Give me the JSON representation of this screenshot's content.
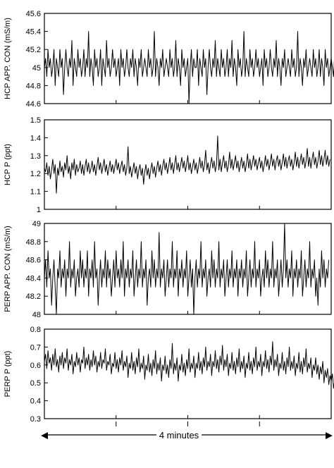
{
  "chart_data": [
    {
      "type": "line",
      "ylabel": "HCP APP. CON (mS/m)",
      "ylim": [
        44.6,
        45.6
      ],
      "yticks": [
        "44.6",
        "44.8",
        "45",
        "45.2",
        "45.4",
        "45.6"
      ],
      "xlim": [
        0,
        240
      ],
      "series": [
        {
          "values": [
            45.0,
            45.1,
            44.9,
            45.2,
            45.0,
            45.1,
            44.9,
            45.0,
            45.2,
            44.8,
            45.1,
            45.0,
            44.9,
            45.2,
            45.0,
            45.1,
            44.7,
            45.0,
            45.2,
            45.0,
            44.9,
            45.1,
            45.0,
            45.3,
            44.8,
            45.1,
            45.0,
            44.9,
            45.2,
            45.0,
            45.1,
            44.9,
            45.0,
            45.2,
            44.9,
            45.1,
            45.0,
            45.4,
            44.9,
            45.1,
            45.0,
            44.8,
            45.2,
            45.0,
            45.1,
            44.9,
            45.0,
            45.2,
            44.8,
            45.1,
            45.0,
            44.9,
            45.3,
            45.0,
            45.1,
            44.9,
            45.0,
            45.2,
            45.0,
            45.1,
            44.9,
            45.0,
            45.1,
            44.8,
            45.2,
            45.0,
            45.1,
            44.9,
            45.0,
            45.2,
            45.0,
            44.9,
            45.1,
            45.0,
            45.2,
            44.9,
            45.1,
            45.0,
            44.8,
            45.1,
            45.0,
            45.2,
            44.9,
            45.0,
            45.1,
            45.0,
            44.9,
            45.2,
            45.0,
            45.1,
            44.9,
            45.0,
            45.4,
            44.9,
            45.1,
            45.0,
            44.8,
            45.1,
            45.0,
            45.2,
            44.9,
            45.0,
            45.1,
            45.0,
            44.9,
            45.2,
            45.0,
            45.1,
            44.9,
            45.0,
            45.3,
            44.9,
            45.1,
            45.0,
            44.8,
            45.2,
            45.0,
            45.1,
            44.9,
            45.0,
            45.1,
            44.6,
            45.0,
            45.2,
            44.9,
            45.1,
            45.0,
            45.0,
            45.2,
            44.8,
            45.1,
            45.0,
            44.9,
            45.2,
            45.0,
            45.1,
            44.7,
            45.0,
            45.2,
            45.0,
            44.9,
            45.1,
            45.0,
            45.3,
            44.9,
            45.1,
            45.0,
            44.9,
            45.2,
            45.0,
            45.1,
            44.9,
            45.0,
            45.2,
            44.9,
            45.1,
            45.0,
            45.3,
            44.9,
            45.1,
            45.0,
            44.8,
            45.2,
            45.0,
            45.1,
            44.9,
            45.0,
            45.4,
            44.9,
            45.1,
            45.0,
            44.9,
            45.2,
            45.0,
            45.1,
            44.9,
            45.0,
            45.2,
            45.0,
            45.1,
            44.9,
            45.0,
            45.1,
            44.8,
            45.2,
            45.0,
            45.1,
            44.9,
            45.0,
            45.2,
            45.0,
            44.9,
            45.1,
            45.0,
            45.3,
            44.9,
            45.1,
            45.0,
            44.8,
            45.1,
            45.0,
            45.2,
            44.9,
            45.0,
            45.1,
            45.0,
            44.9,
            45.2,
            45.0,
            45.1,
            44.9,
            45.0,
            45.4,
            44.9,
            45.1,
            45.0,
            44.8,
            45.1,
            45.0,
            45.2,
            44.9,
            45.0,
            45.1,
            45.0,
            44.9,
            45.2,
            45.0,
            45.1,
            44.9,
            45.0,
            45.2,
            44.9,
            45.1,
            45.0,
            44.8,
            45.2,
            45.0,
            45.1,
            44.9,
            45.0,
            45.1,
            45.0,
            44.9,
            45.2,
            45.0,
            45.1,
            44.9,
            45.0
          ]
        }
      ]
    },
    {
      "type": "line",
      "ylabel": "HCP  P (ppt)",
      "ylim": [
        1,
        1.5
      ],
      "yticks": [
        "1",
        "1.1",
        "1.2",
        "1.3",
        "1.4",
        "1.5"
      ],
      "xlim": [
        0,
        240
      ],
      "series": [
        {
          "values": [
            1.23,
            1.21,
            1.26,
            1.19,
            1.24,
            1.17,
            1.22,
            1.28,
            1.2,
            1.25,
            1.09,
            1.23,
            1.19,
            1.27,
            1.21,
            1.24,
            1.18,
            1.26,
            1.22,
            1.3,
            1.2,
            1.24,
            1.17,
            1.26,
            1.22,
            1.28,
            1.19,
            1.25,
            1.21,
            1.23,
            1.27,
            1.2,
            1.25,
            1.19,
            1.24,
            1.28,
            1.21,
            1.26,
            1.2,
            1.23,
            1.27,
            1.21,
            1.25,
            1.19,
            1.24,
            1.29,
            1.22,
            1.26,
            1.2,
            1.24,
            1.28,
            1.21,
            1.25,
            1.19,
            1.23,
            1.27,
            1.21,
            1.25,
            1.2,
            1.24,
            1.28,
            1.22,
            1.26,
            1.2,
            1.24,
            1.27,
            1.21,
            1.25,
            1.19,
            1.23,
            1.35,
            1.2,
            1.24,
            1.18,
            1.22,
            1.26,
            1.2,
            1.24,
            1.17,
            1.22,
            1.25,
            1.19,
            1.23,
            1.14,
            1.21,
            1.25,
            1.19,
            1.23,
            1.17,
            1.22,
            1.26,
            1.2,
            1.24,
            1.18,
            1.23,
            1.27,
            1.21,
            1.25,
            1.19,
            1.24,
            1.28,
            1.22,
            1.26,
            1.2,
            1.24,
            1.29,
            1.22,
            1.26,
            1.2,
            1.25,
            1.3,
            1.22,
            1.26,
            1.21,
            1.25,
            1.29,
            1.23,
            1.27,
            1.21,
            1.25,
            1.3,
            1.22,
            1.26,
            1.2,
            1.24,
            1.28,
            1.22,
            1.26,
            1.2,
            1.24,
            1.29,
            1.23,
            1.27,
            1.21,
            1.25,
            1.33,
            1.22,
            1.26,
            1.2,
            1.25,
            1.29,
            1.23,
            1.27,
            1.21,
            1.25,
            1.41,
            1.22,
            1.28,
            1.21,
            1.26,
            1.3,
            1.23,
            1.27,
            1.21,
            1.25,
            1.32,
            1.23,
            1.28,
            1.22,
            1.26,
            1.3,
            1.23,
            1.27,
            1.21,
            1.25,
            1.29,
            1.23,
            1.27,
            1.21,
            1.25,
            1.31,
            1.23,
            1.28,
            1.22,
            1.26,
            1.3,
            1.24,
            1.28,
            1.22,
            1.26,
            1.29,
            1.23,
            1.27,
            1.21,
            1.25,
            1.3,
            1.24,
            1.28,
            1.22,
            1.26,
            1.31,
            1.24,
            1.28,
            1.22,
            1.27,
            1.3,
            1.24,
            1.28,
            1.22,
            1.26,
            1.31,
            1.24,
            1.29,
            1.23,
            1.27,
            1.3,
            1.24,
            1.28,
            1.22,
            1.26,
            1.32,
            1.24,
            1.29,
            1.23,
            1.27,
            1.31,
            1.25,
            1.29,
            1.23,
            1.27,
            1.34,
            1.24,
            1.29,
            1.23,
            1.28,
            1.32,
            1.25,
            1.29,
            1.23,
            1.27,
            1.33,
            1.25,
            1.3,
            1.24,
            1.28,
            1.33,
            1.25,
            1.3,
            1.24,
            1.28
          ]
        }
      ]
    },
    {
      "type": "line",
      "ylabel": "PERP  APP. CON (mS/m)",
      "ylim": [
        48,
        49
      ],
      "yticks": [
        "48",
        "48.2",
        "48.4",
        "48.6",
        "48.8",
        "49"
      ],
      "xlim": [
        0,
        240
      ],
      "series": [
        {
          "values": [
            48.4,
            48.6,
            48.3,
            48.7,
            48.4,
            48.5,
            48.1,
            48.4,
            48.6,
            48.3,
            48.0,
            48.5,
            48.4,
            48.7,
            48.3,
            48.5,
            48.4,
            48.6,
            48.2,
            48.5,
            48.4,
            48.8,
            48.3,
            48.5,
            48.4,
            48.6,
            48.2,
            48.4,
            48.5,
            48.3,
            48.7,
            48.4,
            48.6,
            48.3,
            48.5,
            48.4,
            48.7,
            48.2,
            48.5,
            48.4,
            48.6,
            48.3,
            48.8,
            48.4,
            48.5,
            48.1,
            48.4,
            48.6,
            48.3,
            48.5,
            48.4,
            48.7,
            48.3,
            48.6,
            48.4,
            48.5,
            48.2,
            48.4,
            48.6,
            48.3,
            48.7,
            48.4,
            48.5,
            48.3,
            48.6,
            48.4,
            48.8,
            48.2,
            48.5,
            48.4,
            48.6,
            48.3,
            48.5,
            48.4,
            48.7,
            48.2,
            48.4,
            48.6,
            48.3,
            48.5,
            48.4,
            48.8,
            48.3,
            48.5,
            48.4,
            48.6,
            48.1,
            48.4,
            48.5,
            48.3,
            48.7,
            48.4,
            48.6,
            48.3,
            48.5,
            48.4,
            48.9,
            48.3,
            48.5,
            48.4,
            48.6,
            48.2,
            48.4,
            48.6,
            48.3,
            48.5,
            48.4,
            48.8,
            48.3,
            48.5,
            48.4,
            48.7,
            48.2,
            48.5,
            48.4,
            48.6,
            48.3,
            48.5,
            48.4,
            48.7,
            48.2,
            48.4,
            48.6,
            48.3,
            48.5,
            48.0,
            48.4,
            48.6,
            48.3,
            48.5,
            48.4,
            48.8,
            48.3,
            48.5,
            48.4,
            48.6,
            48.2,
            48.4,
            48.5,
            48.3,
            48.7,
            48.4,
            48.6,
            48.3,
            48.5,
            48.4,
            48.8,
            48.3,
            48.5,
            48.4,
            48.6,
            48.2,
            48.4,
            48.6,
            48.3,
            48.5,
            48.4,
            48.7,
            48.3,
            48.5,
            48.4,
            48.6,
            48.2,
            48.5,
            48.4,
            48.6,
            48.3,
            48.5,
            48.4,
            48.7,
            48.2,
            48.4,
            48.6,
            48.3,
            48.5,
            48.4,
            48.8,
            48.3,
            48.5,
            48.4,
            48.6,
            48.2,
            48.4,
            48.5,
            48.3,
            48.7,
            48.4,
            48.6,
            48.3,
            48.5,
            48.4,
            48.8,
            48.3,
            48.5,
            48.4,
            48.6,
            48.2,
            48.4,
            48.6,
            48.3,
            48.5,
            49.0,
            48.4,
            48.6,
            48.3,
            48.5,
            48.4,
            48.7,
            48.2,
            48.5,
            48.4,
            48.6,
            48.3,
            48.5,
            48.4,
            48.7,
            48.2,
            48.4,
            48.6,
            48.3,
            48.5,
            48.4,
            48.8,
            48.3,
            48.5,
            48.4,
            48.6,
            48.2,
            48.4,
            48.1,
            48.5,
            48.3,
            48.7,
            48.4,
            48.6,
            48.3,
            48.5,
            48.4,
            48.6
          ]
        }
      ]
    },
    {
      "type": "line",
      "ylabel": "PERP  P (ppt)",
      "ylim": [
        0.3,
        0.8
      ],
      "yticks": [
        "0.3",
        "0.4",
        "0.5",
        "0.6",
        "0.7",
        "0.8"
      ],
      "xlim": [
        0,
        240
      ],
      "series": [
        {
          "values": [
            0.62,
            0.66,
            0.58,
            0.68,
            0.61,
            0.64,
            0.57,
            0.66,
            0.6,
            0.69,
            0.59,
            0.63,
            0.56,
            0.65,
            0.6,
            0.67,
            0.58,
            0.64,
            0.61,
            0.69,
            0.57,
            0.63,
            0.6,
            0.66,
            0.55,
            0.62,
            0.59,
            0.67,
            0.6,
            0.64,
            0.56,
            0.63,
            0.61,
            0.7,
            0.58,
            0.64,
            0.6,
            0.66,
            0.57,
            0.63,
            0.59,
            0.68,
            0.6,
            0.65,
            0.56,
            0.62,
            0.59,
            0.67,
            0.58,
            0.63,
            0.61,
            0.69,
            0.57,
            0.62,
            0.6,
            0.66,
            0.55,
            0.61,
            0.59,
            0.67,
            0.58,
            0.63,
            0.56,
            0.64,
            0.6,
            0.68,
            0.57,
            0.62,
            0.59,
            0.65,
            0.53,
            0.61,
            0.58,
            0.67,
            0.57,
            0.62,
            0.55,
            0.64,
            0.59,
            0.69,
            0.56,
            0.61,
            0.58,
            0.65,
            0.52,
            0.6,
            0.57,
            0.66,
            0.56,
            0.61,
            0.54,
            0.63,
            0.58,
            0.68,
            0.55,
            0.61,
            0.57,
            0.64,
            0.51,
            0.6,
            0.57,
            0.65,
            0.55,
            0.6,
            0.53,
            0.63,
            0.58,
            0.72,
            0.55,
            0.61,
            0.57,
            0.64,
            0.51,
            0.6,
            0.57,
            0.66,
            0.56,
            0.61,
            0.54,
            0.63,
            0.58,
            0.69,
            0.56,
            0.61,
            0.58,
            0.65,
            0.53,
            0.61,
            0.58,
            0.67,
            0.57,
            0.62,
            0.55,
            0.64,
            0.59,
            0.7,
            0.57,
            0.62,
            0.59,
            0.66,
            0.54,
            0.62,
            0.59,
            0.68,
            0.58,
            0.63,
            0.56,
            0.65,
            0.6,
            0.71,
            0.57,
            0.63,
            0.59,
            0.66,
            0.54,
            0.61,
            0.58,
            0.67,
            0.57,
            0.62,
            0.55,
            0.64,
            0.59,
            0.69,
            0.56,
            0.62,
            0.58,
            0.65,
            0.53,
            0.61,
            0.58,
            0.67,
            0.57,
            0.62,
            0.55,
            0.64,
            0.59,
            0.7,
            0.57,
            0.62,
            0.59,
            0.66,
            0.54,
            0.62,
            0.59,
            0.68,
            0.58,
            0.63,
            0.56,
            0.65,
            0.6,
            0.73,
            0.57,
            0.63,
            0.59,
            0.66,
            0.54,
            0.61,
            0.58,
            0.67,
            0.57,
            0.62,
            0.55,
            0.64,
            0.59,
            0.7,
            0.57,
            0.62,
            0.58,
            0.65,
            0.54,
            0.61,
            0.58,
            0.67,
            0.56,
            0.62,
            0.55,
            0.64,
            0.59,
            0.69,
            0.56,
            0.61,
            0.58,
            0.64,
            0.53,
            0.6,
            0.57,
            0.64,
            0.55,
            0.6,
            0.52,
            0.59,
            0.55,
            0.62,
            0.5,
            0.57,
            0.53,
            0.58,
            0.49,
            0.54,
            0.51,
            0.55,
            0.47,
            0.52
          ]
        }
      ]
    }
  ],
  "time_axis": {
    "label": "4 minutes",
    "left_arrow": "◀",
    "right_arrow": "▶"
  }
}
